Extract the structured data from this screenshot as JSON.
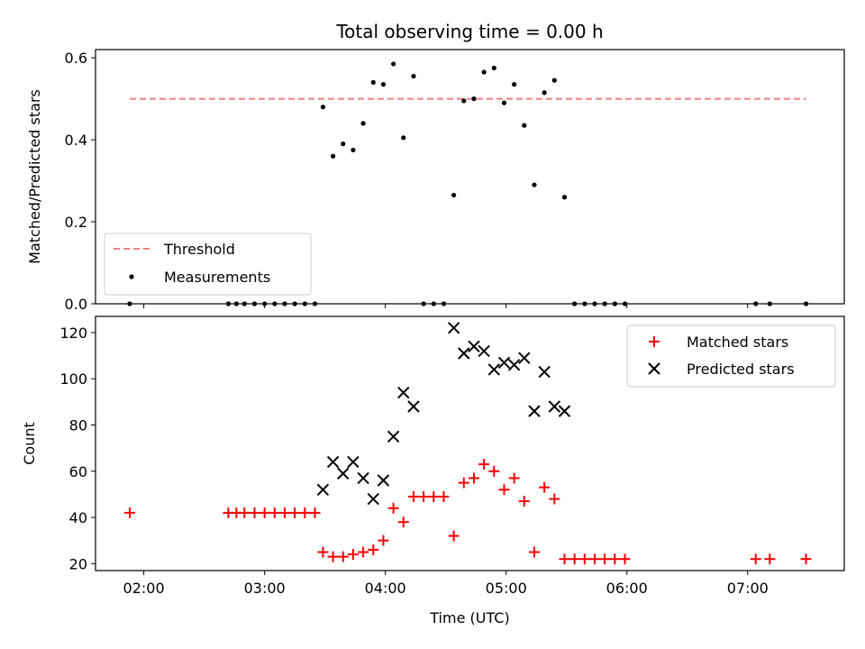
{
  "chart_data": [
    {
      "type": "scatter",
      "title": "Total observing time = 0.00 h",
      "ylabel": "Matched/Predicted stars",
      "xlabel": "",
      "x_range": [
        "01:36",
        "07:48"
      ],
      "ylim": [
        0.0,
        0.62
      ],
      "yticks": [
        "0.0",
        "0.2",
        "0.4",
        "0.6"
      ],
      "legend_position": "lower-left",
      "series": [
        {
          "name": "Threshold",
          "kind": "dashed-line",
          "color": "#f08080",
          "x": [
            "01:53",
            "07:29"
          ],
          "y": [
            0.5,
            0.5
          ]
        },
        {
          "name": "Measurements",
          "kind": "points",
          "color": "#000000",
          "x": [
            "01:53",
            "02:42",
            "02:46",
            "02:50",
            "02:55",
            "03:00",
            "03:05",
            "03:10",
            "03:15",
            "03:20",
            "03:25",
            "03:29",
            "03:34",
            "03:39",
            "03:44",
            "03:49",
            "03:54",
            "03:59",
            "04:04",
            "04:09",
            "04:14",
            "04:19",
            "04:24",
            "04:29",
            "04:34",
            "04:39",
            "04:44",
            "04:49",
            "04:54",
            "04:59",
            "05:04",
            "05:09",
            "05:14",
            "05:19",
            "05:24",
            "05:29",
            "05:34",
            "05:39",
            "05:44",
            "05:49",
            "05:54",
            "05:59",
            "07:04",
            "07:11",
            "07:29"
          ],
          "y": [
            0,
            0,
            0,
            0,
            0,
            0,
            0,
            0,
            0,
            0,
            0,
            0.48,
            0.36,
            0.39,
            0.375,
            0.44,
            0.54,
            0.535,
            0.585,
            0.405,
            0.555,
            0,
            0,
            0,
            0.265,
            0.495,
            0.5,
            0.565,
            0.575,
            0.49,
            0.535,
            0.435,
            0.29,
            0.515,
            0.545,
            0.26,
            0,
            0,
            0,
            0,
            0,
            0,
            0,
            0,
            0
          ]
        }
      ]
    },
    {
      "type": "scatter",
      "title": "",
      "ylabel": "Count",
      "xlabel": "Time (UTC)",
      "x_range": [
        "01:36",
        "07:48"
      ],
      "ylim": [
        17,
        127
      ],
      "yticks": [
        "20",
        "40",
        "60",
        "80",
        "100",
        "120"
      ],
      "xticks": [
        "02:00",
        "03:00",
        "04:00",
        "05:00",
        "06:00",
        "07:00"
      ],
      "legend_position": "top-right",
      "series": [
        {
          "name": "Matched stars",
          "marker": "plus",
          "color": "#ff0000",
          "x": [
            "01:53",
            "02:42",
            "02:46",
            "02:50",
            "02:55",
            "03:00",
            "03:05",
            "03:10",
            "03:15",
            "03:20",
            "03:25",
            "03:29",
            "03:34",
            "03:39",
            "03:44",
            "03:49",
            "03:54",
            "03:59",
            "04:04",
            "04:09",
            "04:14",
            "04:19",
            "04:24",
            "04:29",
            "04:34",
            "04:39",
            "04:44",
            "04:49",
            "04:54",
            "04:59",
            "05:04",
            "05:09",
            "05:14",
            "05:19",
            "05:24",
            "05:29",
            "05:34",
            "05:39",
            "05:44",
            "05:49",
            "05:54",
            "05:59",
            "07:04",
            "07:11",
            "07:29"
          ],
          "y": [
            42,
            42,
            42,
            42,
            42,
            42,
            42,
            42,
            42,
            42,
            42,
            25,
            23,
            23,
            24,
            25,
            26,
            30,
            44,
            38,
            49,
            49,
            49,
            49,
            32,
            55,
            57,
            63,
            60,
            52,
            57,
            47,
            25,
            53,
            48,
            22,
            22,
            22,
            22,
            22,
            22,
            22,
            22,
            22,
            22
          ]
        },
        {
          "name": "Predicted stars",
          "marker": "x",
          "color": "#000000",
          "x": [
            "03:29",
            "03:34",
            "03:39",
            "03:44",
            "03:49",
            "03:54",
            "03:59",
            "04:04",
            "04:09",
            "04:14",
            "04:34",
            "04:39",
            "04:44",
            "04:49",
            "04:54",
            "04:59",
            "05:04",
            "05:09",
            "05:14",
            "05:19",
            "05:24",
            "05:29"
          ],
          "y": [
            52,
            64,
            59,
            64,
            57,
            48,
            56,
            75,
            94,
            88,
            122,
            111,
            114,
            112,
            104,
            107,
            106,
            109,
            86,
            103,
            88,
            86
          ]
        }
      ]
    }
  ]
}
